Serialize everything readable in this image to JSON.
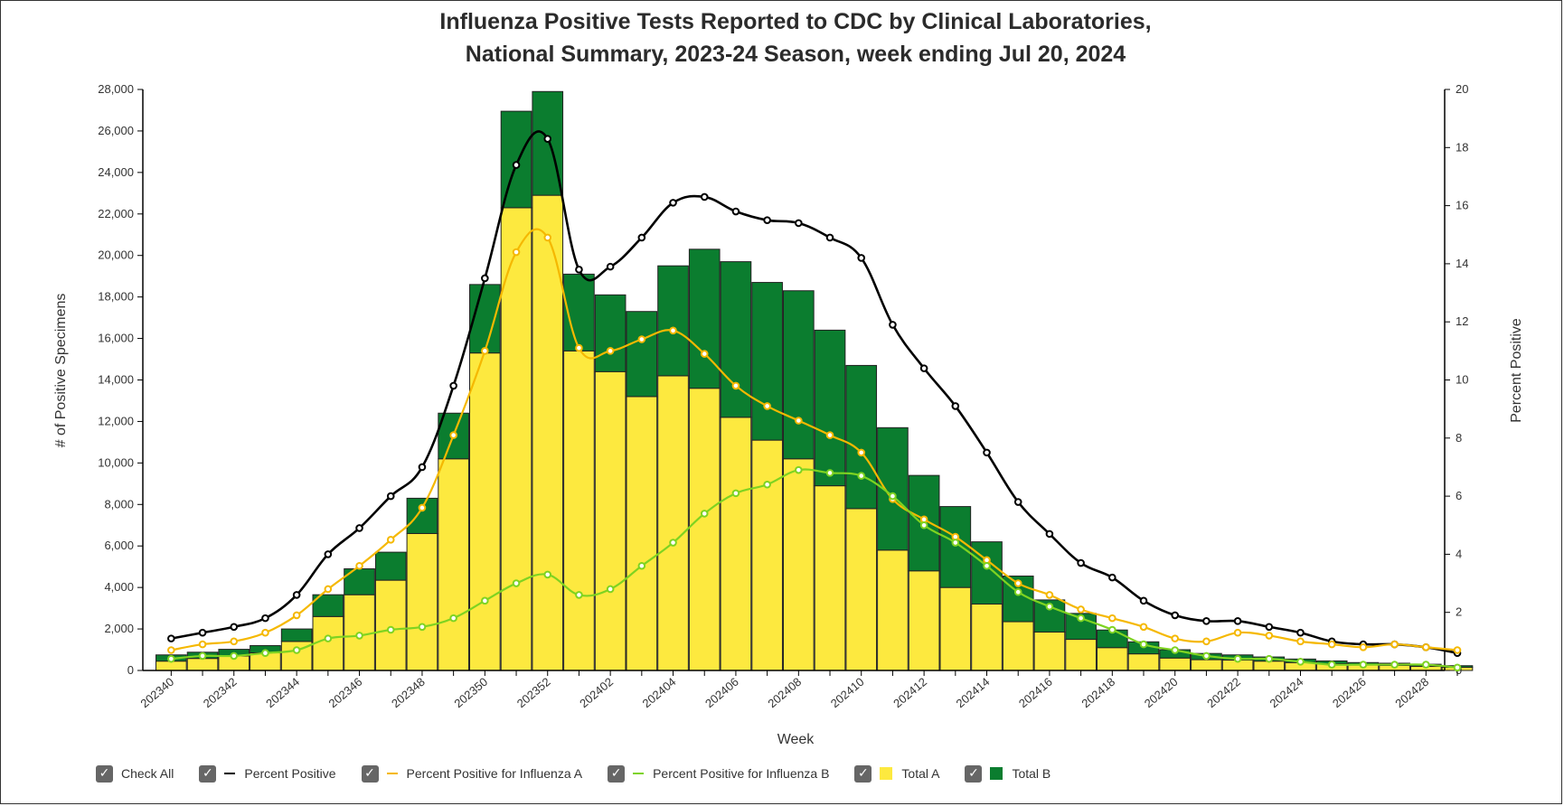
{
  "chart_data": {
    "type": "bar",
    "title": [
      "Influenza Positive Tests Reported to CDC by Clinical Laboratories,",
      "National Summary, 2023-24 Season, week ending Jul 20, 2024"
    ],
    "xlabel": "Week",
    "ylabel": "# of Positive Specimens",
    "y2label": "Percent Positive",
    "ylim": [
      0,
      28000
    ],
    "y2lim": [
      0,
      20
    ],
    "yticks": [
      "0",
      "2,000",
      "4,000",
      "6,000",
      "8,000",
      "10,000",
      "12,000",
      "14,000",
      "16,000",
      "18,000",
      "20,000",
      "22,000",
      "24,000",
      "26,000",
      "28,000"
    ],
    "y2ticks": [
      "0",
      "2",
      "4",
      "6",
      "8",
      "10",
      "12",
      "14",
      "16",
      "18",
      "20"
    ],
    "stacked": true,
    "categories": [
      "202340",
      "202341",
      "202342",
      "202343",
      "202344",
      "202345",
      "202346",
      "202347",
      "202348",
      "202349",
      "202350",
      "202351",
      "202352",
      "202401",
      "202402",
      "202403",
      "202404",
      "202405",
      "202406",
      "202407",
      "202408",
      "202409",
      "202410",
      "202411",
      "202412",
      "202413",
      "202414",
      "202415",
      "202416",
      "202417",
      "202418",
      "202419",
      "202420",
      "202421",
      "202422",
      "202423",
      "202424",
      "202425",
      "202426",
      "202427",
      "202428",
      "202429"
    ],
    "tick_labels": [
      "202340",
      "202342",
      "202344",
      "202346",
      "202348",
      "202350",
      "202352",
      "202402",
      "202404",
      "202406",
      "202408",
      "202410",
      "202412",
      "202414",
      "202416",
      "202418",
      "202420",
      "202422",
      "202424",
      "202426",
      "202428"
    ],
    "series": [
      {
        "name": "Total A",
        "axis": "left",
        "kind": "bar",
        "color": "#fde93f",
        "values": [
          450,
          580,
          700,
          850,
          1400,
          2600,
          3650,
          4350,
          6600,
          10200,
          15300,
          22300,
          22900,
          15400,
          14400,
          13200,
          14200,
          13600,
          12200,
          11100,
          10200,
          8900,
          7800,
          5800,
          4800,
          4000,
          3200,
          2350,
          1850,
          1500,
          1100,
          800,
          600,
          520,
          500,
          450,
          380,
          320,
          260,
          240,
          200,
          150
        ]
      },
      {
        "name": "Total B",
        "axis": "left",
        "kind": "bar",
        "color": "#0b7d2f",
        "values": [
          300,
          300,
          320,
          350,
          600,
          1050,
          1250,
          1350,
          1700,
          2200,
          3300,
          4650,
          5000,
          3700,
          3700,
          4100,
          5300,
          6700,
          7500,
          7600,
          8100,
          7500,
          6900,
          5900,
          4600,
          3900,
          3000,
          2200,
          1550,
          1250,
          850,
          580,
          400,
          300,
          250,
          200,
          170,
          140,
          120,
          110,
          100,
          80
        ]
      },
      {
        "name": "Percent Positive",
        "axis": "right",
        "kind": "line",
        "color": "#000000",
        "values": [
          1.1,
          1.3,
          1.5,
          1.8,
          2.6,
          4.0,
          4.9,
          6.0,
          7.0,
          9.8,
          13.5,
          17.4,
          18.3,
          13.8,
          13.9,
          14.9,
          16.1,
          16.3,
          15.8,
          15.5,
          15.4,
          14.9,
          14.2,
          11.9,
          10.4,
          9.1,
          7.5,
          5.8,
          4.7,
          3.7,
          3.2,
          2.4,
          1.9,
          1.7,
          1.7,
          1.5,
          1.3,
          1.0,
          0.9,
          0.9,
          0.8,
          0.6
        ]
      },
      {
        "name": "Percent Positive for Influenza A",
        "axis": "right",
        "kind": "line",
        "color": "#f5b800",
        "values": [
          0.7,
          0.9,
          1.0,
          1.3,
          1.9,
          2.8,
          3.6,
          4.5,
          5.6,
          8.1,
          11.0,
          14.4,
          14.9,
          11.1,
          11.0,
          11.4,
          11.7,
          10.9,
          9.8,
          9.1,
          8.6,
          8.1,
          7.5,
          5.9,
          5.2,
          4.6,
          3.8,
          3.0,
          2.6,
          2.1,
          1.8,
          1.5,
          1.1,
          1.0,
          1.3,
          1.2,
          1.0,
          0.9,
          0.8,
          0.9,
          0.8,
          0.7
        ]
      },
      {
        "name": "Percent Positive for Influenza B",
        "axis": "right",
        "kind": "line",
        "color": "#7ed321",
        "values": [
          0.4,
          0.5,
          0.5,
          0.6,
          0.7,
          1.1,
          1.2,
          1.4,
          1.5,
          1.8,
          2.4,
          3.0,
          3.3,
          2.6,
          2.8,
          3.6,
          4.4,
          5.4,
          6.1,
          6.4,
          6.9,
          6.8,
          6.7,
          6.0,
          5.0,
          4.4,
          3.6,
          2.7,
          2.2,
          1.8,
          1.4,
          0.9,
          0.7,
          0.5,
          0.4,
          0.4,
          0.3,
          0.2,
          0.2,
          0.2,
          0.2,
          0.1
        ]
      }
    ],
    "grid": false
  },
  "legend": {
    "check_all": "Check All",
    "items": [
      {
        "label": "Percent Positive",
        "color": "#000000",
        "kind": "line"
      },
      {
        "label": "Percent Positive for Influenza A",
        "color": "#f5b800",
        "kind": "line"
      },
      {
        "label": "Percent Positive for Influenza B",
        "color": "#7ed321",
        "kind": "line"
      },
      {
        "label": "Total A",
        "color": "#fde93f",
        "kind": "box"
      },
      {
        "label": "Total B",
        "color": "#0b7d2f",
        "kind": "box"
      }
    ]
  }
}
